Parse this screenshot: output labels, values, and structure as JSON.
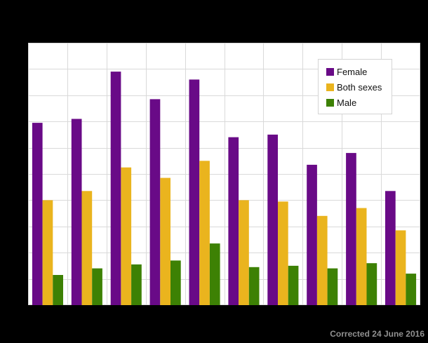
{
  "chart_data": {
    "type": "bar",
    "title": "",
    "xlabel": "",
    "ylabel": "",
    "categories": [
      "",
      "",
      "",
      "",
      "",
      "",
      "",
      "",
      "",
      ""
    ],
    "series": [
      {
        "name": "Female",
        "color": "#690a87",
        "values": [
          6.95,
          7.1,
          8.9,
          7.85,
          8.6,
          6.4,
          6.5,
          5.35,
          5.8,
          4.35
        ]
      },
      {
        "name": "Both sexes",
        "color": "#eab41e",
        "values": [
          4.0,
          4.35,
          5.25,
          4.85,
          5.5,
          4.0,
          3.95,
          3.4,
          3.7,
          2.85
        ]
      },
      {
        "name": "Male",
        "color": "#3d8104",
        "values": [
          1.15,
          1.4,
          1.55,
          1.7,
          2.35,
          1.45,
          1.5,
          1.4,
          1.6,
          1.2
        ]
      }
    ],
    "ylim": [
      0,
      10
    ],
    "y_gridline_step": 1,
    "x_gridline_divisions": 10,
    "grid": true,
    "legend_position": "top-right",
    "axis_tick_labels_visible": false
  },
  "footer": {
    "note": "Corrected 24 June 2016"
  },
  "colors": {
    "page_background": "#000000",
    "plot_background": "#ffffff",
    "gridline": "#d9d9d9",
    "legend_border": "#d4d4d4",
    "footer_text": "#919191"
  }
}
